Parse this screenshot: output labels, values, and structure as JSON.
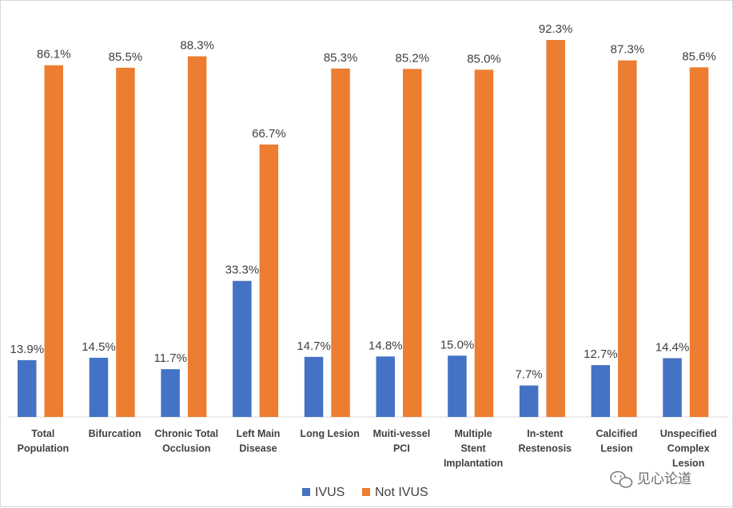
{
  "chart_data": {
    "type": "bar",
    "title": "",
    "xlabel": "",
    "ylabel": "",
    "ylim": [
      0,
      100
    ],
    "grid": false,
    "legend_position": "bottom-center",
    "categories": [
      [
        "Total",
        "Population"
      ],
      [
        "Bifurcation"
      ],
      [
        "Chronic Total",
        "Occlusion"
      ],
      [
        "Left Main",
        "Disease"
      ],
      [
        "Long Lesion"
      ],
      [
        "Muiti-vessel",
        "PCI"
      ],
      [
        "Multiple",
        "Stent",
        "Implantation"
      ],
      [
        "In-stent",
        "Restenosis"
      ],
      [
        "Calcified",
        "Lesion"
      ],
      [
        "Unspecified",
        "Complex",
        "Lesion"
      ]
    ],
    "series": [
      {
        "name": "IVUS",
        "color": "#4472C4",
        "values": [
          13.9,
          14.5,
          11.7,
          33.3,
          14.7,
          14.8,
          15.0,
          7.7,
          12.7,
          14.4
        ],
        "labels": [
          "13.9%",
          "14.5%",
          "11.7%",
          "33.3%",
          "14.7%",
          "14.8%",
          "15.0%",
          "7.7%",
          "12.7%",
          "14.4%"
        ]
      },
      {
        "name": "Not IVUS",
        "color": "#ED7D31",
        "values": [
          86.1,
          85.5,
          88.3,
          66.7,
          85.3,
          85.2,
          85.0,
          92.3,
          87.3,
          85.6
        ],
        "labels": [
          "86.1%",
          "85.5%",
          "88.3%",
          "66.7%",
          "85.3%",
          "85.2%",
          "85.0%",
          "92.3%",
          "87.3%",
          "85.6%"
        ]
      }
    ]
  },
  "watermark": {
    "text": "见心论道",
    "icon": "wechat-bubble-icon"
  }
}
